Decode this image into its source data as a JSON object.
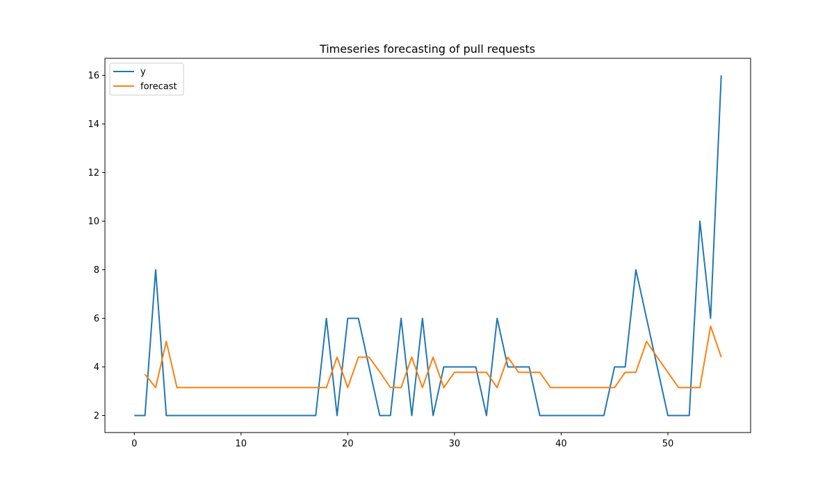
{
  "chart_data": {
    "type": "line",
    "title": "Timeseries forecasting of pull requests",
    "xlabel": "",
    "ylabel": "",
    "xlim": [
      -2.75,
      57.75
    ],
    "ylim": [
      1.3,
      16.7
    ],
    "x_ticks": [
      0,
      10,
      20,
      30,
      40,
      50
    ],
    "y_ticks": [
      2,
      4,
      6,
      8,
      10,
      12,
      14,
      16
    ],
    "x_tick_labels": [
      "0",
      "10",
      "20",
      "30",
      "40",
      "50"
    ],
    "y_tick_labels": [
      "2",
      "4",
      "6",
      "8",
      "10",
      "12",
      "14",
      "16"
    ],
    "grid": false,
    "legend_position": "top-left",
    "colors": {
      "y": "#1f77b4",
      "forecast": "#ff7f0e"
    },
    "series": [
      {
        "name": "y",
        "x": [
          0,
          1,
          2,
          3,
          4,
          5,
          6,
          7,
          8,
          9,
          10,
          11,
          12,
          13,
          14,
          15,
          16,
          17,
          18,
          19,
          20,
          21,
          22,
          23,
          24,
          25,
          26,
          27,
          28,
          29,
          30,
          31,
          32,
          33,
          34,
          35,
          36,
          37,
          38,
          39,
          40,
          41,
          42,
          43,
          44,
          45,
          46,
          47,
          48,
          49,
          50,
          51,
          52,
          53,
          54,
          55
        ],
        "values": [
          2,
          2,
          8,
          2,
          2,
          2,
          2,
          2,
          2,
          2,
          2,
          2,
          2,
          2,
          2,
          2,
          2,
          2,
          6,
          2,
          6,
          6,
          4,
          2,
          2,
          6,
          2,
          6,
          2,
          4,
          4,
          4,
          4,
          2,
          6,
          4,
          4,
          4,
          2,
          2,
          2,
          2,
          2,
          2,
          2,
          4,
          4,
          8,
          6,
          4,
          2,
          2,
          2,
          10,
          6,
          16
        ]
      },
      {
        "name": "forecast",
        "x": [
          1,
          2,
          3,
          4,
          5,
          6,
          7,
          8,
          9,
          10,
          11,
          12,
          13,
          14,
          15,
          16,
          17,
          18,
          19,
          20,
          21,
          22,
          23,
          24,
          25,
          26,
          27,
          28,
          29,
          30,
          31,
          32,
          33,
          34,
          35,
          36,
          37,
          38,
          39,
          40,
          41,
          42,
          43,
          44,
          45,
          46,
          47,
          48,
          49,
          50,
          51,
          52,
          53,
          54,
          55
        ],
        "values": [
          3.7,
          3.15,
          5.05,
          3.15,
          3.15,
          3.15,
          3.15,
          3.15,
          3.15,
          3.15,
          3.15,
          3.15,
          3.15,
          3.15,
          3.15,
          3.15,
          3.15,
          3.15,
          4.4,
          3.15,
          4.4,
          4.4,
          3.8,
          3.15,
          3.15,
          4.4,
          3.15,
          4.4,
          3.15,
          3.78,
          3.78,
          3.78,
          3.78,
          3.15,
          4.4,
          3.78,
          3.78,
          3.78,
          3.15,
          3.15,
          3.15,
          3.15,
          3.15,
          3.15,
          3.15,
          3.78,
          3.78,
          5.05,
          4.4,
          3.78,
          3.15,
          3.15,
          3.15,
          5.68,
          4.4
        ]
      }
    ]
  }
}
